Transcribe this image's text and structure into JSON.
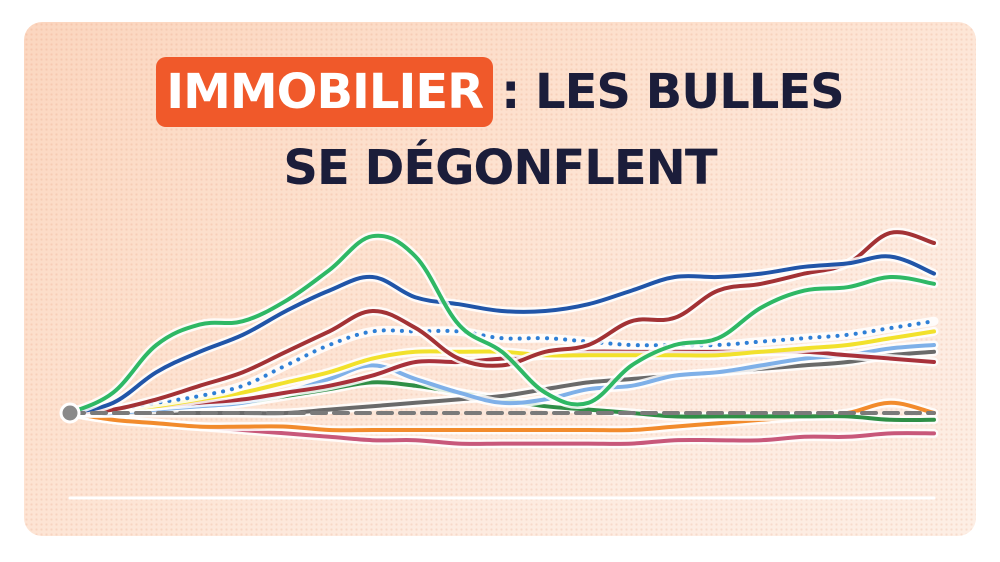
{
  "title": {
    "highlight": "IMMOBILIER",
    "rest_line1": ": LES BULLES",
    "line2": "SE DÉGONFLENT"
  },
  "colors": {
    "background": "#fde4d3",
    "highlight_bg": "#f0592a",
    "title_text": "#1b1d3a",
    "baseline": "#7a7a7a"
  },
  "chart_data": {
    "type": "line",
    "title": "",
    "xlabel": "",
    "ylabel": "",
    "x": [
      0,
      1,
      2,
      3,
      4,
      5,
      6,
      7,
      8,
      9,
      10,
      11,
      12,
      13,
      14,
      15,
      16,
      17,
      18,
      19,
      20
    ],
    "ylim": [
      -12,
      55
    ],
    "baseline": 0,
    "grid": false,
    "legend": "none",
    "series": [
      {
        "color": "#2fb865",
        "style": "solid",
        "values": [
          0,
          6,
          20,
          26,
          27,
          33,
          42,
          52,
          46,
          26,
          18,
          6,
          3,
          14,
          20,
          22,
          31,
          36,
          37,
          40,
          38
        ]
      },
      {
        "color": "#2155a8",
        "style": "solid",
        "values": [
          0,
          3,
          12,
          18,
          23,
          30,
          36,
          40,
          34,
          32,
          30,
          30,
          32,
          36,
          40,
          40,
          41,
          43,
          44,
          46,
          41
        ]
      },
      {
        "color": "#a33235",
        "style": "solid",
        "values": [
          0,
          1,
          4,
          8,
          12,
          18,
          24,
          30,
          25,
          16,
          14,
          18,
          20,
          27,
          28,
          36,
          38,
          41,
          44,
          53,
          50
        ]
      },
      {
        "color": "#2e7fd6",
        "style": "dotted",
        "values": [
          0,
          1,
          3,
          5,
          8,
          14,
          20,
          24,
          24,
          24,
          22,
          22,
          21,
          20,
          20,
          20,
          21,
          22,
          23,
          25,
          27
        ]
      },
      {
        "color": "#f2e12c",
        "style": "solid",
        "values": [
          0,
          1,
          2,
          4,
          6,
          9,
          12,
          16,
          18,
          18,
          18,
          17,
          17,
          17,
          17,
          17,
          18,
          19,
          20,
          22,
          24
        ]
      },
      {
        "color": "#a8313a",
        "style": "solid",
        "values": [
          0,
          1,
          2,
          3,
          4,
          6,
          8,
          11,
          15,
          15,
          16,
          17,
          18,
          18,
          18,
          18,
          18,
          18,
          17,
          16,
          15
        ]
      },
      {
        "color": "#7fb0e8",
        "style": "solid",
        "values": [
          0,
          0,
          1,
          2,
          3,
          6,
          10,
          14,
          10,
          6,
          3,
          4,
          7,
          8,
          11,
          12,
          14,
          16,
          17,
          19,
          20
        ]
      },
      {
        "color": "#6a6a6a",
        "style": "solid",
        "values": [
          0,
          0,
          0,
          0,
          0,
          0,
          1,
          2,
          3,
          4,
          5,
          7,
          9,
          10,
          11,
          12,
          13,
          14,
          15,
          17,
          18
        ]
      },
      {
        "color": "#2f8f46",
        "style": "solid",
        "values": [
          0,
          0,
          1,
          2,
          3,
          5,
          7,
          9,
          8,
          6,
          4,
          2,
          1,
          0,
          -1,
          -1,
          -1,
          -1,
          -1,
          -2,
          -2
        ]
      },
      {
        "color": "#f28b2c",
        "style": "solid",
        "values": [
          0,
          -2,
          -3,
          -4,
          -4,
          -4,
          -5,
          -5,
          -5,
          -5,
          -5,
          -5,
          -5,
          -5,
          -4,
          -3,
          -2,
          -1,
          0,
          3,
          0
        ]
      },
      {
        "color": "#c8587a",
        "style": "solid",
        "values": [
          0,
          -2,
          -3,
          -4,
          -5,
          -6,
          -7,
          -8,
          -8,
          -9,
          -9,
          -9,
          -9,
          -9,
          -8,
          -8,
          -8,
          -7,
          -7,
          -6,
          -6
        ]
      }
    ]
  }
}
